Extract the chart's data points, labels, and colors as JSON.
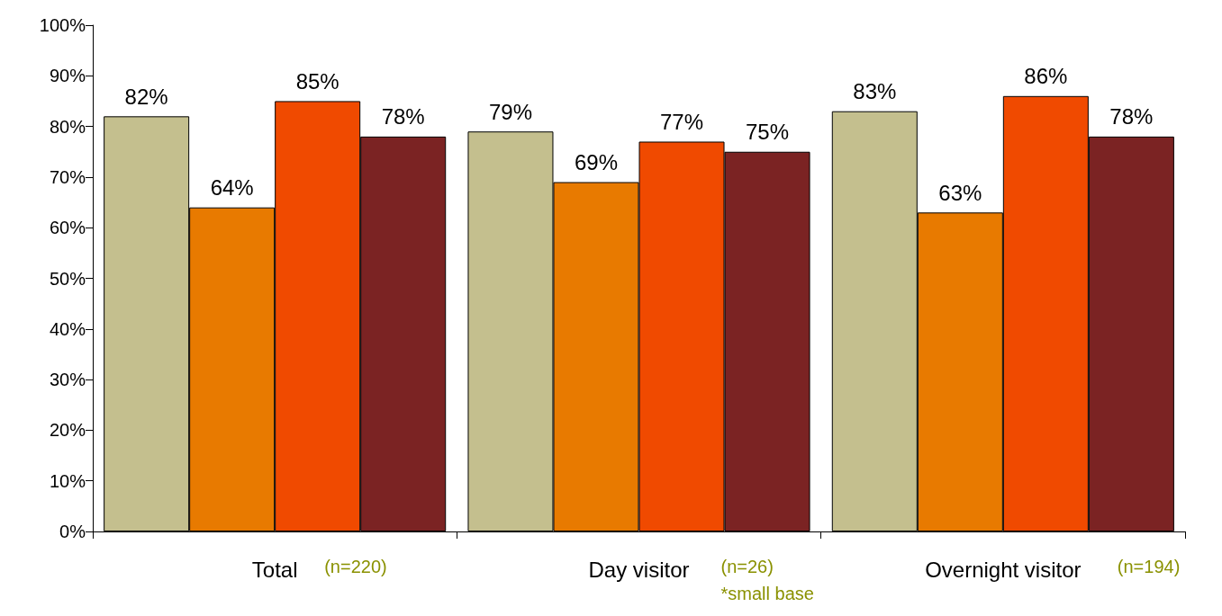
{
  "chart_data": {
    "type": "bar",
    "categories": [
      "Total",
      "Day visitor",
      "Overnight visitor"
    ],
    "series": [
      {
        "color": "#c4bf8e",
        "values": [
          82,
          79,
          83
        ],
        "value_labels": [
          "82%",
          "79%",
          "83%"
        ]
      },
      {
        "color": "#e87a00",
        "values": [
          64,
          69,
          63
        ],
        "value_labels": [
          "64%",
          "69%",
          "63%"
        ]
      },
      {
        "color": "#f04a00",
        "values": [
          85,
          77,
          86
        ],
        "value_labels": [
          "85%",
          "77%",
          "86%"
        ]
      },
      {
        "color": "#7b2323",
        "values": [
          78,
          75,
          78
        ],
        "value_labels": [
          "78%",
          "75%",
          "78%"
        ]
      }
    ],
    "ylim": [
      0,
      100
    ],
    "yticks": [
      {
        "value": 0,
        "label": "0%"
      },
      {
        "value": 10,
        "label": "10%"
      },
      {
        "value": 20,
        "label": "20%"
      },
      {
        "value": 30,
        "label": "30%"
      },
      {
        "value": 40,
        "label": "40%"
      },
      {
        "value": 50,
        "label": "50%"
      },
      {
        "value": 60,
        "label": "60%"
      },
      {
        "value": 70,
        "label": "70%"
      },
      {
        "value": 80,
        "label": "80%"
      },
      {
        "value": 90,
        "label": "90%"
      },
      {
        "value": 100,
        "label": "100%"
      }
    ],
    "grid": false,
    "annotations": [
      "(n=220)",
      "(n=26)\n*small base",
      "(n=194)"
    ]
  }
}
